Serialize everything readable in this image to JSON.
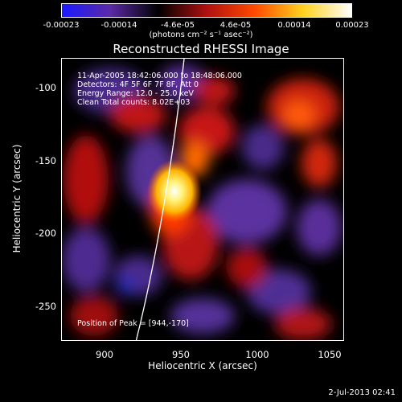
{
  "colorbar": {
    "ticks": [
      "-0.00023",
      "-0.00014",
      "-4.6e-05",
      "4.6e-05",
      "0.00014",
      "0.00023"
    ],
    "units": "(photons cm⁻² s⁻¹ asec⁻²)",
    "range": [
      -0.00023,
      0.00023
    ],
    "colors": [
      "#1a1aff",
      "#5b2aa6",
      "#000000",
      "#b01010",
      "#ff4a00",
      "#ffd21e",
      "#ffffff"
    ]
  },
  "image": {
    "title": "Reconstructed RHESSI Image",
    "time_range": "11-Apr-2005 18:42:06.000 to 18:48:06.000",
    "detectors": "Detectors: 4F 5F 6F 7F 8F, Att 0",
    "energy": "Energy Range: 12.0 - 25.0 keV",
    "clean": "Clean    Total counts: 8.02E+03",
    "peak": "Position of Peak = [944,-170]",
    "xlabel": "Heliocentric X (arcsec)",
    "ylabel": "Heliocentric Y (arcsec)",
    "xticks": [
      "900",
      "950",
      "1000",
      "1050"
    ],
    "yticks": [
      "-100",
      "-150",
      "-200",
      "-250"
    ],
    "xrange": [
      866,
      1059
    ],
    "yrange": [
      -273,
      -80
    ],
    "peak_position": [
      944,
      -170
    ]
  },
  "footer": {
    "timestamp": "2-Jul-2013 02:41"
  }
}
